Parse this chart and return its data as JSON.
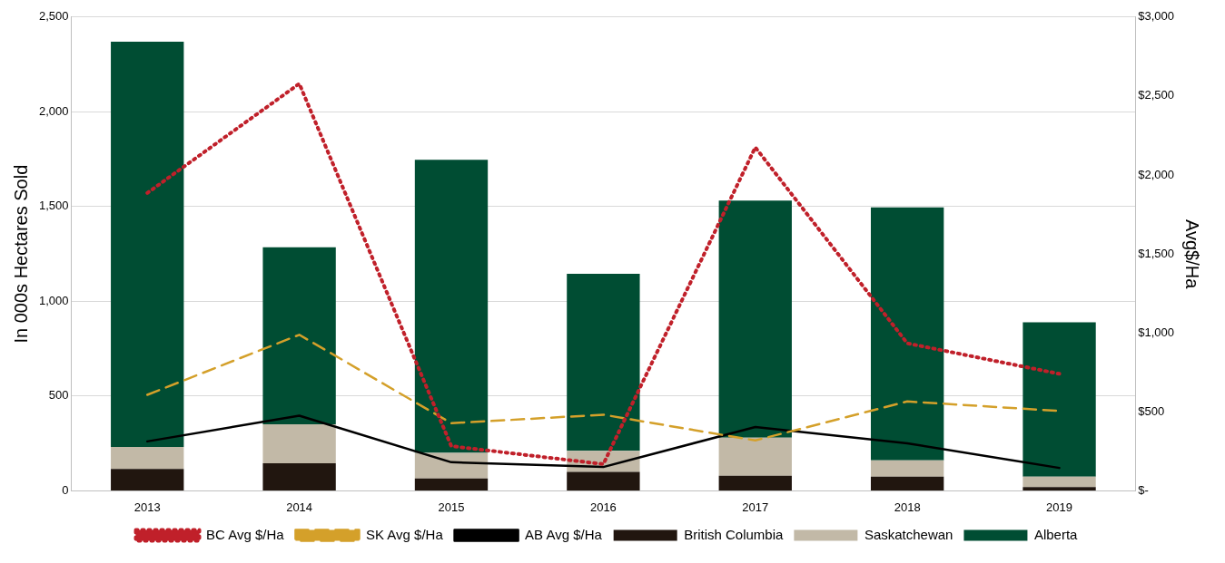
{
  "chart_data": {
    "type": "bar",
    "stacked": true,
    "categories": [
      "2013",
      "2014",
      "2015",
      "2016",
      "2017",
      "2018",
      "2019"
    ],
    "ylabel": "In 000s Hectares Sold",
    "y2label": "Avg$/Ha",
    "ylim": [
      0,
      2500
    ],
    "yticks": [
      {
        "value": 0,
        "label": "0"
      },
      {
        "value": 500,
        "label": "500"
      },
      {
        "value": 1000,
        "label": "1,000"
      },
      {
        "value": 1500,
        "label": "1,500"
      },
      {
        "value": 2000,
        "label": "2,000"
      },
      {
        "value": 2500,
        "label": "2,500"
      }
    ],
    "y2lim": [
      0,
      3000
    ],
    "y2ticks": [
      {
        "value": 0,
        "label": "$-"
      },
      {
        "value": 500,
        "label": "$500"
      },
      {
        "value": 1000,
        "label": "$1,000"
      },
      {
        "value": 1500,
        "label": "$1,500"
      },
      {
        "value": 2000,
        "label": "$2,000"
      },
      {
        "value": 2500,
        "label": "$2,500"
      },
      {
        "value": 3000,
        "label": "$3,000"
      }
    ],
    "grid": "y",
    "legend": "bottom",
    "marker": "none",
    "series": [
      {
        "name": "British Columbia",
        "color": "#21160f",
        "values": [
          115,
          146,
          65,
          100,
          80,
          75,
          20
        ]
      },
      {
        "name": "Saskatchewan",
        "color": "#c2b9a7",
        "values": [
          116,
          205,
          135,
          111,
          201,
          86,
          55
        ]
      },
      {
        "name": "Alberta",
        "color": "#004d33",
        "values": [
          2139,
          934,
          1547,
          934,
          1250,
          1335,
          814
        ]
      },
      {
        "name": "BC Avg $/Ha",
        "type": "line",
        "axis": "y2",
        "line_style": "dotted",
        "color": "#c0202a",
        "values": [
          1886,
          2578,
          283,
          169,
          2175,
          934,
          741
        ]
      },
      {
        "name": "SK Avg $/Ha",
        "type": "line",
        "axis": "y2",
        "line_style": "dashed",
        "color": "#d4a02a",
        "values": [
          608,
          988,
          428,
          482,
          319,
          566,
          506
        ]
      },
      {
        "name": "AB Avg $/Ha",
        "type": "line",
        "axis": "y2",
        "line_style": "solid",
        "color": "#000000",
        "values": [
          313,
          476,
          181,
          151,
          404,
          301,
          145
        ]
      }
    ]
  }
}
